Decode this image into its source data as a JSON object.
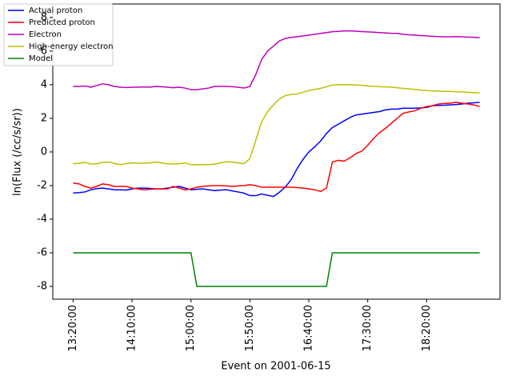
{
  "chart_data": {
    "type": "line",
    "ylabel": "ln(Flux (/cc/s/sr))",
    "xlabel": "Event on 2001-06-15",
    "x": [
      "13:20:00",
      "13:25:00",
      "13:30:00",
      "13:35:00",
      "13:40:00",
      "13:45:00",
      "13:50:00",
      "13:55:00",
      "14:00:00",
      "14:05:00",
      "14:10:00",
      "14:15:00",
      "14:20:00",
      "14:25:00",
      "14:30:00",
      "14:35:00",
      "14:40:00",
      "14:45:00",
      "14:50:00",
      "14:55:00",
      "15:00:00",
      "15:05:00",
      "15:10:00",
      "15:15:00",
      "15:20:00",
      "15:25:00",
      "15:30:00",
      "15:35:00",
      "15:40:00",
      "15:45:00",
      "15:50:00",
      "15:55:00",
      "16:00:00",
      "16:05:00",
      "16:10:00",
      "16:15:00",
      "16:20:00",
      "16:25:00",
      "16:30:00",
      "16:35:00",
      "16:40:00",
      "16:45:00",
      "16:50:00",
      "16:55:00",
      "17:00:00",
      "17:05:00",
      "17:10:00",
      "17:15:00",
      "17:20:00",
      "17:25:00",
      "17:30:00",
      "17:35:00",
      "17:40:00",
      "17:45:00",
      "17:50:00",
      "17:55:00",
      "18:00:00",
      "18:05:00",
      "18:10:00",
      "18:15:00",
      "18:20:00",
      "18:25:00",
      "18:30:00",
      "18:35:00",
      "18:40:00",
      "18:45:00",
      "18:50:00",
      "18:55:00",
      "19:00:00",
      "19:05:00"
    ],
    "series": [
      {
        "name": "Actual proton",
        "color": "#0000ff",
        "values": [
          -2.45,
          -2.42,
          -2.38,
          -2.25,
          -2.18,
          -2.15,
          -2.2,
          -2.25,
          -2.25,
          -2.27,
          -2.2,
          -2.15,
          -2.15,
          -2.17,
          -2.2,
          -2.2,
          -2.15,
          -2.1,
          -2.05,
          -2.15,
          -2.25,
          -2.22,
          -2.2,
          -2.25,
          -2.3,
          -2.27,
          -2.25,
          -2.32,
          -2.38,
          -2.45,
          -2.6,
          -2.6,
          -2.5,
          -2.58,
          -2.65,
          -2.4,
          -2.1,
          -1.65,
          -1.0,
          -0.45,
          0.0,
          0.3,
          0.65,
          1.1,
          1.45,
          1.65,
          1.85,
          2.05,
          2.2,
          2.25,
          2.3,
          2.35,
          2.4,
          2.5,
          2.55,
          2.55,
          2.6,
          2.6,
          2.6,
          2.62,
          2.65,
          2.75,
          2.77,
          2.78,
          2.8,
          2.82,
          2.85,
          2.9,
          2.92,
          2.95
        ]
      },
      {
        "name": "Predicted proton",
        "color": "#ff0000",
        "values": [
          -1.85,
          -1.9,
          -2.05,
          -2.15,
          -2.05,
          -1.9,
          -1.95,
          -2.05,
          -2.05,
          -2.05,
          -2.15,
          -2.2,
          -2.25,
          -2.22,
          -2.2,
          -2.2,
          -2.2,
          -2.05,
          -2.15,
          -2.25,
          -2.2,
          -2.1,
          -2.05,
          -2.02,
          -2.0,
          -2.0,
          -2.02,
          -2.05,
          -2.02,
          -2.0,
          -1.95,
          -2.0,
          -2.1,
          -2.1,
          -2.1,
          -2.1,
          -2.1,
          -2.1,
          -2.12,
          -2.15,
          -2.2,
          -2.25,
          -2.35,
          -2.15,
          -0.6,
          -0.5,
          -0.55,
          -0.35,
          -0.1,
          0.05,
          0.4,
          0.8,
          1.15,
          1.4,
          1.7,
          2.0,
          2.3,
          2.38,
          2.45,
          2.6,
          2.7,
          2.75,
          2.85,
          2.88,
          2.9,
          2.95,
          2.9,
          2.85,
          2.8,
          2.7
        ]
      },
      {
        "name": "Electron",
        "color": "#bf00bf",
        "values": [
          3.9,
          3.9,
          3.92,
          3.85,
          3.95,
          4.05,
          4.0,
          3.9,
          3.85,
          3.83,
          3.85,
          3.85,
          3.87,
          3.85,
          3.9,
          3.88,
          3.85,
          3.82,
          3.85,
          3.8,
          3.7,
          3.7,
          3.75,
          3.8,
          3.9,
          3.9,
          3.9,
          3.88,
          3.85,
          3.8,
          3.9,
          4.6,
          5.5,
          6.0,
          6.3,
          6.6,
          6.75,
          6.82,
          6.85,
          6.9,
          6.95,
          7.0,
          7.05,
          7.1,
          7.15,
          7.17,
          7.2,
          7.2,
          7.18,
          7.16,
          7.14,
          7.12,
          7.1,
          7.08,
          7.06,
          7.05,
          7.0,
          6.97,
          6.95,
          6.92,
          6.9,
          6.88,
          6.86,
          6.85,
          6.85,
          6.86,
          6.85,
          6.83,
          6.82,
          6.8
        ]
      },
      {
        "name": "High-energy electron",
        "color": "#bfbf00",
        "values": [
          -0.7,
          -0.68,
          -0.62,
          -0.72,
          -0.7,
          -0.62,
          -0.6,
          -0.68,
          -0.75,
          -0.7,
          -0.65,
          -0.67,
          -0.67,
          -0.65,
          -0.6,
          -0.65,
          -0.7,
          -0.72,
          -0.7,
          -0.65,
          -0.75,
          -0.77,
          -0.75,
          -0.76,
          -0.72,
          -0.65,
          -0.58,
          -0.6,
          -0.65,
          -0.7,
          -0.4,
          0.7,
          1.8,
          2.4,
          2.8,
          3.15,
          3.35,
          3.42,
          3.45,
          3.55,
          3.65,
          3.72,
          3.78,
          3.88,
          3.98,
          4.0,
          4.0,
          4.0,
          3.98,
          3.96,
          3.93,
          3.9,
          3.88,
          3.87,
          3.85,
          3.82,
          3.78,
          3.75,
          3.72,
          3.68,
          3.65,
          3.63,
          3.62,
          3.6,
          3.6,
          3.58,
          3.57,
          3.55,
          3.53,
          3.5
        ]
      },
      {
        "name": "Model",
        "color": "#008000",
        "values": [
          -6,
          -6,
          -6,
          -6,
          -6,
          -6,
          -6,
          -6,
          -6,
          -6,
          -6,
          -6,
          -6,
          -6,
          -6,
          -6,
          -6,
          -6,
          -6,
          -6,
          -6,
          -8,
          -8,
          -8,
          -8,
          -8,
          -8,
          -8,
          -8,
          -8,
          -8,
          -8,
          -8,
          -8,
          -8,
          -8,
          -8,
          -8,
          -8,
          -8,
          -8,
          -8,
          -8,
          -8,
          -6,
          -6,
          -6,
          -6,
          -6,
          -6,
          -6,
          -6,
          -6,
          -6,
          -6,
          -6,
          -6,
          -6,
          -6,
          -6,
          -6,
          -6,
          -6,
          -6,
          -6,
          -6,
          -6,
          -6,
          -6,
          -6
        ]
      }
    ],
    "xlim": [
      "13:02:45",
      "19:22:15"
    ],
    "xticks": [
      "13:20:00",
      "14:10:00",
      "15:00:00",
      "15:50:00",
      "16:40:00",
      "17:30:00",
      "18:20:00"
    ],
    "ylim": [
      -8.76,
      8.8
    ],
    "yticks": [
      -8,
      -6,
      -4,
      -2,
      0,
      2,
      4,
      6,
      8
    ],
    "legend": "upper left"
  }
}
